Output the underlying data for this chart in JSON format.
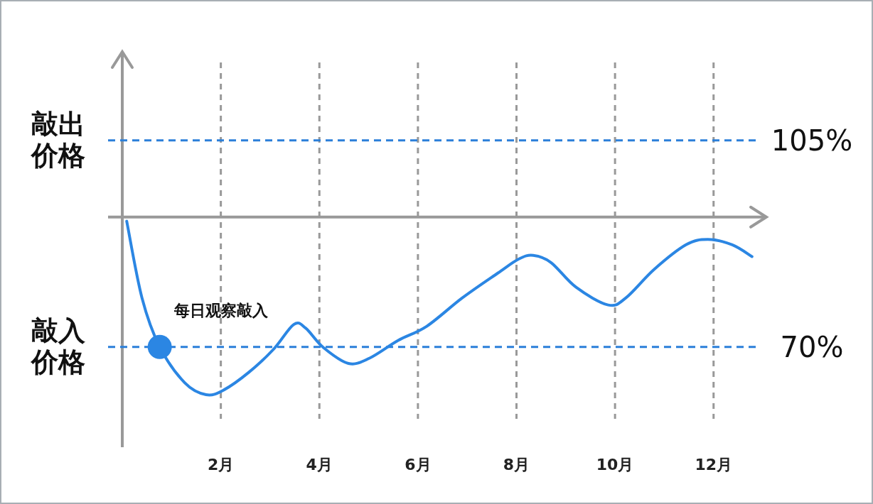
{
  "chart_data": {
    "type": "line",
    "xlim": [
      0,
      13.1
    ],
    "ylim": [
      53,
      120
    ],
    "xticks": [
      {
        "value": 2,
        "label": "2月"
      },
      {
        "value": 4,
        "label": "4月"
      },
      {
        "value": 6,
        "label": "6月"
      },
      {
        "value": 8,
        "label": "8月"
      },
      {
        "value": 10,
        "label": "10月"
      },
      {
        "value": 12,
        "label": "12月"
      }
    ],
    "tick_labels": "x",
    "grid": "x",
    "series": [
      {
        "color": "#2b86e3",
        "x": [
          0.09,
          0.4,
          0.76,
          1.27,
          1.7,
          2.06,
          2.57,
          3.07,
          3.48,
          3.72,
          4.08,
          4.59,
          5.02,
          5.6,
          6.18,
          6.9,
          7.62,
          8.05,
          8.34,
          8.7,
          9.21,
          9.86,
          10.22,
          10.79,
          11.44,
          11.88,
          12.38,
          12.78
        ],
        "values": [
          91.3,
          78.3,
          70,
          63.9,
          61.9,
          62.7,
          65.7,
          69.6,
          73.8,
          73.2,
          69.9,
          67.2,
          68.1,
          71.1,
          73.5,
          78.3,
          82.5,
          84.9,
          85.5,
          84.3,
          80.1,
          77.1,
          78.3,
          83.1,
          87.3,
          88.2,
          87.3,
          85.3
        ]
      },
      {
        "type": "scatter",
        "marker": "circle",
        "color": "#2b86e3",
        "x": [
          0.76
        ],
        "values": [
          70
        ]
      }
    ],
    "ref_lines": [
      {
        "axis": "y",
        "value": 105,
        "label": "105%",
        "color": "#2b7fd9",
        "line_style": "dashed"
      },
      {
        "axis": "y",
        "value": 70,
        "label": "70%",
        "color": "#2b7fd9",
        "line_style": "dashed"
      },
      {
        "axis": "y",
        "value": 92,
        "color": "#999999",
        "line_style": "solid"
      }
    ],
    "annotations": [
      {
        "text": "每日观察敲入",
        "x": 0.76,
        "y": 70
      },
      "敲出价格",
      "敲入价格"
    ]
  }
}
